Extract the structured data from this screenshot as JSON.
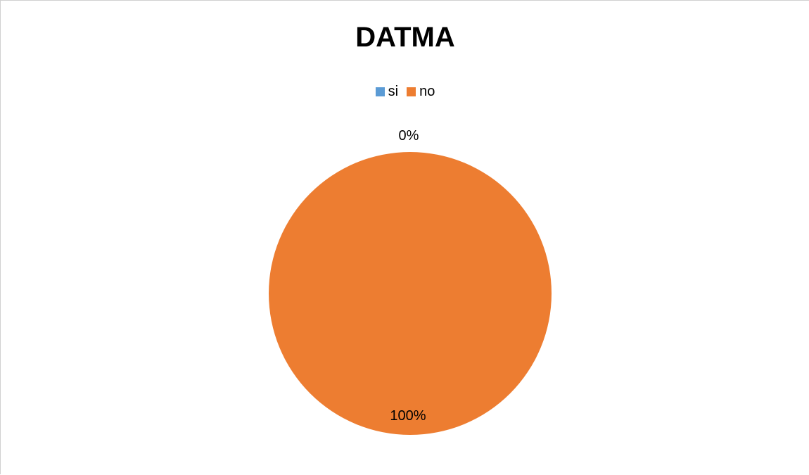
{
  "chart_data": {
    "type": "pie",
    "title": "DATMA",
    "categories": [
      "si",
      "no"
    ],
    "values": [
      0,
      100
    ],
    "data_labels": [
      "0%",
      "100%"
    ],
    "colors": [
      "#5B9BD5",
      "#ED7D31"
    ],
    "legend_position": "top"
  }
}
